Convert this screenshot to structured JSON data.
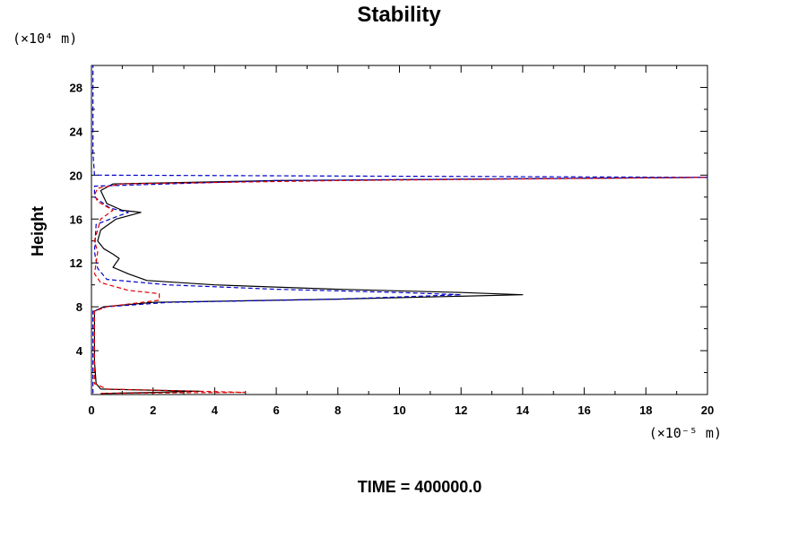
{
  "chart_data": {
    "type": "line",
    "title": "Stability",
    "ylabel": "Height",
    "y_unit": "(×10⁴ m)",
    "x_unit": "(×10⁻⁵ m)",
    "xlim": [
      0,
      20
    ],
    "ylim": [
      0,
      30
    ],
    "x_ticks": [
      "0",
      "2",
      "4",
      "6",
      "8",
      "10",
      "12",
      "14",
      "16",
      "18",
      "20"
    ],
    "y_ticks": [
      "4",
      "8",
      "12",
      "16",
      "20",
      "24",
      "28"
    ],
    "grid": false,
    "series": [
      {
        "color": "#000000",
        "dash": "solid",
        "points": [
          [
            0.3,
            0.1
          ],
          [
            2.0,
            0.2
          ],
          [
            3.5,
            0.3
          ],
          [
            0.3,
            0.5
          ],
          [
            0.15,
            1.0
          ],
          [
            0.1,
            3.0
          ],
          [
            0.1,
            6.0
          ],
          [
            0.1,
            7.6
          ],
          [
            0.4,
            8.0
          ],
          [
            2.0,
            8.4
          ],
          [
            8.0,
            8.7
          ],
          [
            14.0,
            9.1
          ],
          [
            12.0,
            9.3
          ],
          [
            8.0,
            9.6
          ],
          [
            4.0,
            10.0
          ],
          [
            1.8,
            10.4
          ],
          [
            1.2,
            11.0
          ],
          [
            0.7,
            11.6
          ],
          [
            0.9,
            12.4
          ],
          [
            0.7,
            12.8
          ],
          [
            0.4,
            13.3
          ],
          [
            0.2,
            14.0
          ],
          [
            0.3,
            15.0
          ],
          [
            0.8,
            16.0
          ],
          [
            1.6,
            16.6
          ],
          [
            1.0,
            16.8
          ],
          [
            0.5,
            17.4
          ],
          [
            0.4,
            18.0
          ],
          [
            0.3,
            18.6
          ],
          [
            0.7,
            19.2
          ],
          [
            6.0,
            19.5
          ],
          [
            20.0,
            19.8
          ]
        ]
      },
      {
        "color": "#0000cc",
        "dash": "dashed",
        "points": [
          [
            0.05,
            0.1
          ],
          [
            0.05,
            4.0
          ],
          [
            0.05,
            7.6
          ],
          [
            0.5,
            8.0
          ],
          [
            2.5,
            8.4
          ],
          [
            8.0,
            8.7
          ],
          [
            12.0,
            9.1
          ],
          [
            10.0,
            9.3
          ],
          [
            6.0,
            9.6
          ],
          [
            2.5,
            10.0
          ],
          [
            0.5,
            10.5
          ],
          [
            0.2,
            11.5
          ],
          [
            0.1,
            13.0
          ],
          [
            0.15,
            15.5
          ],
          [
            0.8,
            16.2
          ],
          [
            1.2,
            16.6
          ],
          [
            0.6,
            17.0
          ],
          [
            0.1,
            18.0
          ],
          [
            0.1,
            19.0
          ],
          [
            6.0,
            19.5
          ],
          [
            20.0,
            19.8
          ],
          [
            0.1,
            20.0
          ],
          [
            0.05,
            22.0
          ],
          [
            0.05,
            26.0
          ],
          [
            0.05,
            30.0
          ]
        ]
      },
      {
        "color": "#dd0000",
        "dash": "dashed",
        "points": [
          [
            0.3,
            0.1
          ],
          [
            2.0,
            0.15
          ],
          [
            5.0,
            0.2
          ],
          [
            0.5,
            0.5
          ],
          [
            0.1,
            1.0
          ],
          [
            0.1,
            5.0
          ],
          [
            0.1,
            7.6
          ],
          [
            0.5,
            8.0
          ],
          [
            2.2,
            8.6
          ],
          [
            2.2,
            9.2
          ],
          [
            1.2,
            9.5
          ],
          [
            0.3,
            10.2
          ],
          [
            0.1,
            11.0
          ],
          [
            0.2,
            13.0
          ],
          [
            0.1,
            14.0
          ],
          [
            0.3,
            16.0
          ],
          [
            0.7,
            16.8
          ],
          [
            0.2,
            17.6
          ],
          [
            0.1,
            18.2
          ],
          [
            0.2,
            18.8
          ],
          [
            1.0,
            19.2
          ],
          [
            8.0,
            19.5
          ],
          [
            20.0,
            19.8
          ]
        ]
      }
    ]
  },
  "footer": {
    "time_label": "TIME = 400000.0"
  }
}
